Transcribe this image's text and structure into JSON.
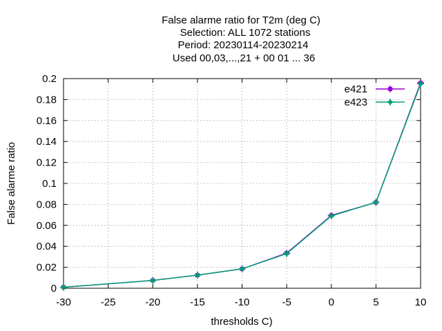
{
  "chart_data": {
    "type": "line",
    "title_lines": [
      "False alarme ratio  for T2m (deg C)",
      "Selection: ALL   1072 stations",
      "Period: 20230114-20230214",
      "Used  00,03,...,21  + 00 01 ... 36"
    ],
    "xlabel": "thresholds C)",
    "ylabel": "False alarme ratio",
    "xlim": [
      -30,
      10
    ],
    "ylim": [
      0,
      0.2
    ],
    "xticks": [
      "-30",
      "-25",
      "-20",
      "-15",
      "-10",
      "-5",
      "0",
      "5",
      "10"
    ],
    "yticks": [
      "0",
      "0.02",
      "0.04",
      "0.06",
      "0.08",
      "0.1",
      "0.12",
      "0.14",
      "0.16",
      "0.18",
      "0.2"
    ],
    "grid": true,
    "legend_position": "top-right",
    "x": [
      -30,
      -20,
      -15,
      -10,
      -5,
      0,
      5,
      10
    ],
    "series": [
      {
        "name": "e421",
        "color": "#9400d3",
        "marker": "square",
        "y": [
          0.001,
          0.0075,
          0.0125,
          0.0185,
          0.0335,
          0.0695,
          0.082,
          0.196
        ]
      },
      {
        "name": "e423",
        "color": "#009e73",
        "marker": "plus",
        "y": [
          0.001,
          0.0075,
          0.0125,
          0.0185,
          0.033,
          0.069,
          0.082,
          0.195
        ]
      }
    ]
  }
}
